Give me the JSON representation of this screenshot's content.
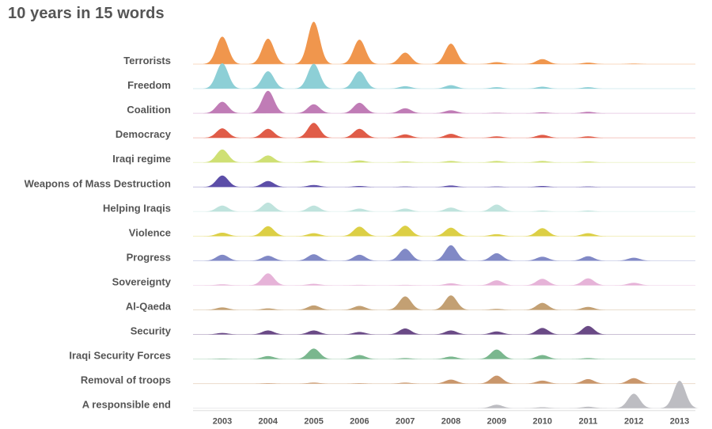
{
  "chart_data": {
    "type": "ridgeline",
    "title": "10 years in 15 words",
    "x": [
      "2003",
      "2004",
      "2005",
      "2006",
      "2007",
      "2008",
      "2009",
      "2010",
      "2011",
      "2012",
      "2013"
    ],
    "xlabel": "",
    "ylabel": "",
    "grid": false,
    "legend": "none",
    "series": [
      {
        "name": "Terrorists",
        "color": "#f0964d",
        "values": [
          0.55,
          0.51,
          0.85,
          0.49,
          0.23,
          0.41,
          0.04,
          0.1,
          0.03,
          0.01,
          0
        ]
      },
      {
        "name": "Freedom",
        "color": "#8dcfd6",
        "values": [
          0.51,
          0.35,
          0.5,
          0.35,
          0.05,
          0.07,
          0.03,
          0.04,
          0.03,
          0,
          0
        ]
      },
      {
        "name": "Coalition",
        "color": "#c07cb6",
        "values": [
          0.23,
          0.45,
          0.18,
          0.21,
          0.1,
          0.06,
          0.01,
          0.02,
          0.03,
          0,
          0
        ]
      },
      {
        "name": "Democracy",
        "color": "#e05c48",
        "values": [
          0.19,
          0.18,
          0.3,
          0.18,
          0.07,
          0.08,
          0.03,
          0.06,
          0.03,
          0,
          0
        ]
      },
      {
        "name": "Iraqi regime",
        "color": "#cfe074",
        "values": [
          0.26,
          0.14,
          0.04,
          0.04,
          0.02,
          0.03,
          0.03,
          0.03,
          0.02,
          0,
          0
        ]
      },
      {
        "name": "Weapons of Mass Destruction",
        "color": "#5c4ea8",
        "values": [
          0.23,
          0.12,
          0.04,
          0.02,
          0.01,
          0.03,
          0.01,
          0.02,
          0.01,
          0,
          0
        ]
      },
      {
        "name": "Helping Iraqis",
        "color": "#bfe3dd",
        "values": [
          0.12,
          0.18,
          0.12,
          0.06,
          0.06,
          0.08,
          0.14,
          0.02,
          0.02,
          0,
          0
        ]
      },
      {
        "name": "Violence",
        "color": "#dccf45",
        "values": [
          0.07,
          0.2,
          0.06,
          0.19,
          0.21,
          0.17,
          0.04,
          0.16,
          0.06,
          0,
          0
        ]
      },
      {
        "name": "Progress",
        "color": "#8189c6",
        "values": [
          0.12,
          0.1,
          0.13,
          0.12,
          0.24,
          0.31,
          0.15,
          0.08,
          0.09,
          0.06,
          0
        ]
      },
      {
        "name": "Sovereignty",
        "color": "#e6b3d8",
        "values": [
          0.02,
          0.24,
          0.03,
          0.01,
          0.01,
          0.04,
          0.1,
          0.13,
          0.14,
          0.05,
          0
        ]
      },
      {
        "name": "Al-Qaeda",
        "color": "#c3a073",
        "values": [
          0.05,
          0.03,
          0.09,
          0.08,
          0.27,
          0.29,
          0.02,
          0.14,
          0.06,
          0,
          0
        ]
      },
      {
        "name": "Security",
        "color": "#6a4a86",
        "values": [
          0.03,
          0.08,
          0.08,
          0.05,
          0.12,
          0.08,
          0.06,
          0.13,
          0.17,
          0,
          0
        ]
      },
      {
        "name": "Iraqi Security Forces",
        "color": "#7ab78e",
        "values": [
          0.01,
          0.06,
          0.21,
          0.08,
          0.02,
          0.05,
          0.19,
          0.08,
          0.02,
          0,
          0
        ]
      },
      {
        "name": "Removal of troops",
        "color": "#c9966b",
        "values": [
          0,
          0.01,
          0.02,
          0.01,
          0.02,
          0.08,
          0.16,
          0.06,
          0.09,
          0.11,
          0
        ]
      },
      {
        "name": "A responsible end",
        "color": "#bdbdc2",
        "values": [
          0,
          0,
          0,
          0,
          0,
          0,
          0.07,
          0.02,
          0.03,
          0.29,
          0.55
        ]
      }
    ]
  }
}
